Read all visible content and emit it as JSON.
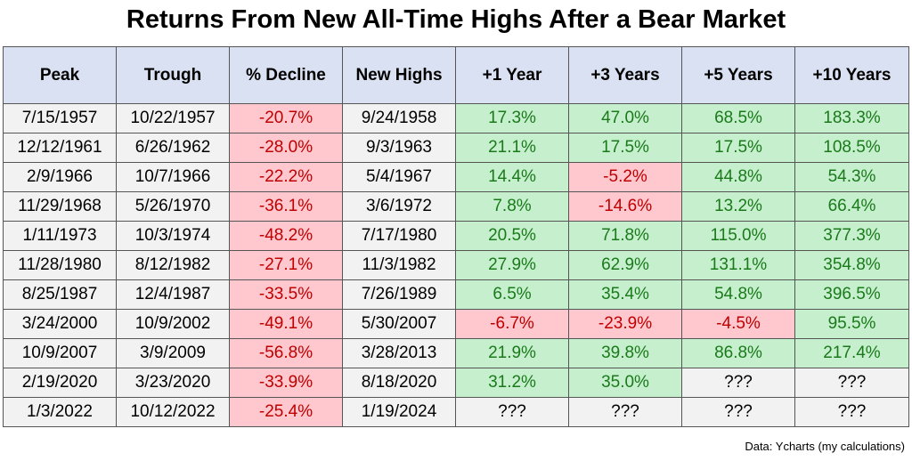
{
  "title": "Returns From New All-Time Highs After a Bear Market",
  "source": "Data: Ycharts (my calculations)",
  "chart_data": {
    "type": "table",
    "columns": [
      "Peak",
      "Trough",
      "% Decline",
      "New Highs",
      "+1 Year",
      "+3 Years",
      "+5 Years",
      "+10 Years"
    ],
    "rows": [
      [
        "7/15/1957",
        "10/22/1957",
        "-20.7%",
        "9/24/1958",
        "17.3%",
        "47.0%",
        "68.5%",
        "183.3%"
      ],
      [
        "12/12/1961",
        "6/26/1962",
        "-28.0%",
        "9/3/1963",
        "21.1%",
        "17.5%",
        "17.5%",
        "108.5%"
      ],
      [
        "2/9/1966",
        "10/7/1966",
        "-22.2%",
        "5/4/1967",
        "14.4%",
        "-5.2%",
        "44.8%",
        "54.3%"
      ],
      [
        "11/29/1968",
        "5/26/1970",
        "-36.1%",
        "3/6/1972",
        "7.8%",
        "-14.6%",
        "13.2%",
        "66.4%"
      ],
      [
        "1/11/1973",
        "10/3/1974",
        "-48.2%",
        "7/17/1980",
        "20.5%",
        "71.8%",
        "115.0%",
        "377.3%"
      ],
      [
        "11/28/1980",
        "8/12/1982",
        "-27.1%",
        "11/3/1982",
        "27.9%",
        "62.9%",
        "131.1%",
        "354.8%"
      ],
      [
        "8/25/1987",
        "12/4/1987",
        "-33.5%",
        "7/26/1989",
        "6.5%",
        "35.4%",
        "54.8%",
        "396.5%"
      ],
      [
        "3/24/2000",
        "10/9/2002",
        "-49.1%",
        "5/30/2007",
        "-6.7%",
        "-23.9%",
        "-4.5%",
        "95.5%"
      ],
      [
        "10/9/2007",
        "3/9/2009",
        "-56.8%",
        "3/28/2013",
        "21.9%",
        "39.8%",
        "86.8%",
        "217.4%"
      ],
      [
        "2/19/2020",
        "3/23/2020",
        "-33.9%",
        "8/18/2020",
        "31.2%",
        "35.0%",
        "???",
        "???"
      ],
      [
        "1/3/2022",
        "10/12/2022",
        "-25.4%",
        "1/19/2024",
        "???",
        "???",
        "???",
        "???"
      ]
    ],
    "colors": {
      "header_bg": "#d9e1f2",
      "positive_bg": "#c6efce",
      "positive_text": "#1a7a1a",
      "negative_bg": "#ffc7ce",
      "negative_text": "#c00000",
      "neutral_bg": "#f2f2f2"
    }
  }
}
